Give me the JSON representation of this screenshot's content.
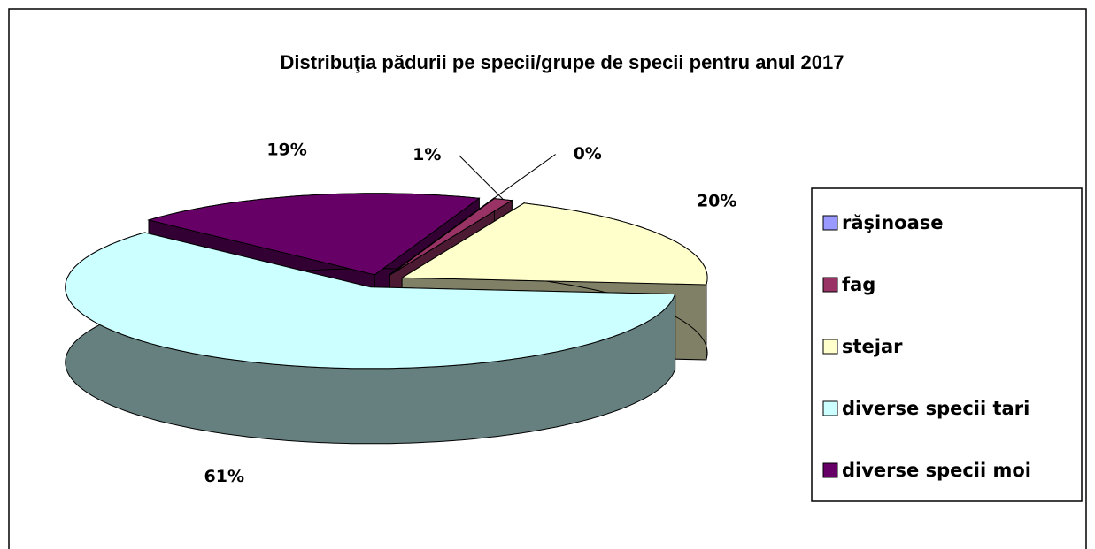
{
  "chart_data": {
    "type": "pie3d",
    "title": "Distribuţia pădurii pe specii/grupe de specii pentru anul 2017",
    "categories": [
      "răşinoase",
      "fag",
      "stejar",
      "diverse specii tari",
      "diverse specii moi"
    ],
    "values": [
      0,
      1,
      20,
      61,
      19
    ],
    "value_labels": [
      "0%",
      "1%",
      "20%",
      "61%",
      "19%"
    ],
    "colors": [
      "#9999ff",
      "#993366",
      "#ffffcc",
      "#ccffff",
      "#660066"
    ],
    "legend": "right"
  }
}
